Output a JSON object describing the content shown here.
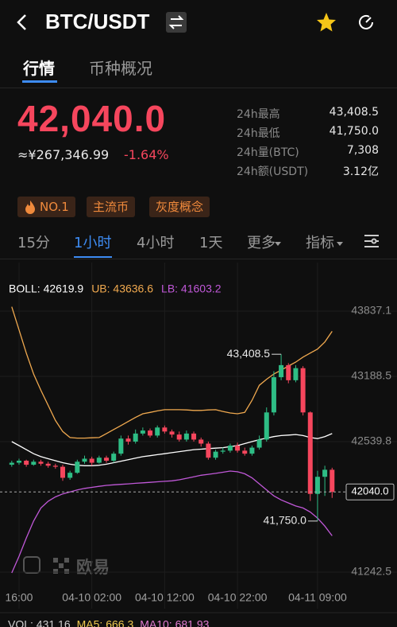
{
  "header": {
    "title": "BTC/USDT"
  },
  "tabs": [
    "行情",
    "币种概况"
  ],
  "price": {
    "last": "42,040.0",
    "cny": "≈¥267,346.99",
    "change": "-1.64%"
  },
  "stats": [
    [
      "24h最高",
      "43,408.5"
    ],
    [
      "24h最低",
      "41,750.0"
    ],
    [
      "24h量(BTC)",
      "7,308"
    ],
    [
      "24h额(USDT)",
      "3.12亿"
    ]
  ],
  "tags": [
    "NO.1",
    "主流币",
    "灰度概念"
  ],
  "intervals": [
    "15分",
    "1小时",
    "4小时",
    "1天",
    "更多",
    "指标"
  ],
  "watermark": "欧易",
  "chart_data": {
    "type": "candlestick",
    "categories": [
      null,
      "16:00",
      null,
      null,
      null,
      null,
      null,
      null,
      null,
      null,
      null,
      "04-10 02:00",
      null,
      null,
      null,
      null,
      null,
      null,
      null,
      null,
      null,
      "04-10 12:00",
      null,
      null,
      null,
      null,
      null,
      null,
      null,
      null,
      null,
      "04-10 22:00",
      null,
      null,
      null,
      null,
      null,
      null,
      null,
      null,
      null,
      null,
      "04-11 09:00",
      null,
      null
    ],
    "open": [
      42310,
      42330,
      42350,
      42310,
      42340,
      42320,
      42300,
      42290,
      42180,
      42230,
      42340,
      42370,
      42330,
      42380,
      42350,
      42420,
      42570,
      42540,
      42620,
      42650,
      42600,
      42680,
      42640,
      42610,
      42560,
      42620,
      42560,
      42520,
      42380,
      42440,
      42450,
      42500,
      42450,
      42420,
      42480,
      42560,
      42830,
      43180,
      43300,
      43150,
      43270,
      42830,
      42020,
      42190,
      42260
    ],
    "high": [
      42350,
      42370,
      42360,
      42360,
      42360,
      42340,
      42320,
      42310,
      42250,
      42360,
      42400,
      42390,
      42400,
      42400,
      42440,
      42600,
      42600,
      42660,
      42680,
      42670,
      42700,
      42700,
      42660,
      42640,
      42650,
      42640,
      42580,
      42540,
      42460,
      42480,
      42520,
      42530,
      42480,
      42500,
      42600,
      42880,
      43240,
      43408.5,
      43320,
      43300,
      43290,
      42840,
      42250,
      42300,
      42280
    ],
    "low": [
      42290,
      42310,
      42290,
      42300,
      42300,
      42280,
      42270,
      42150,
      42160,
      42220,
      42320,
      42300,
      42320,
      42330,
      42330,
      42400,
      42510,
      42520,
      42600,
      42580,
      42580,
      42620,
      42580,
      42540,
      42540,
      42540,
      42490,
      42360,
      42360,
      42420,
      42430,
      42430,
      42400,
      42400,
      42460,
      42540,
      42800,
      43150,
      43120,
      43130,
      42800,
      41950,
      41750,
      42000,
      41980
    ],
    "close": [
      42330,
      42350,
      42310,
      42340,
      42320,
      42300,
      42290,
      42180,
      42230,
      42340,
      42370,
      42330,
      42380,
      42350,
      42420,
      42570,
      42540,
      42620,
      42650,
      42600,
      42680,
      42640,
      42610,
      42560,
      42620,
      42560,
      42520,
      42380,
      42440,
      42450,
      42500,
      42450,
      42420,
      42480,
      42560,
      42830,
      43180,
      43300,
      43150,
      43270,
      42830,
      42020,
      42190,
      42260,
      42040
    ],
    "up_color": "#2ebd85",
    "down_color": "#f6465d",
    "series": [
      {
        "name": "BOLL: 42619.9",
        "color": "#ffffff",
        "values": [
          42540,
          42500,
          42460,
          42420,
          42390,
          42370,
          42350,
          42330,
          42315,
          42305,
          42300,
          42300,
          42305,
          42315,
          42330,
          42345,
          42360,
          42375,
          42390,
          42400,
          42410,
          42420,
          42430,
          42440,
          42450,
          42460,
          42465,
          42470,
          42475,
          42480,
          42490,
          42500,
          42520,
          42540,
          42560,
          42575,
          42590,
          42600,
          42605,
          42610,
          42600,
          42580,
          42570,
          42590,
          42619.9
        ]
      },
      {
        "name": "UB: 43636.6",
        "color": "#f0a94f",
        "values": [
          43880,
          43650,
          43420,
          43212,
          43050,
          42900,
          42750,
          42640,
          42580,
          42575,
          42575,
          42578,
          42580,
          42620,
          42660,
          42700,
          42740,
          42780,
          42817,
          42830,
          42845,
          42857,
          42857,
          42857,
          42855,
          42850,
          42850,
          42855,
          42857,
          42840,
          42825,
          42817,
          42830,
          42950,
          43100,
          43160,
          43212,
          43250,
          43291,
          43330,
          43380,
          43420,
          43460,
          43530,
          43636.6
        ]
      },
      {
        "name": "LB: 41603.2",
        "color": "#c058d8",
        "values": [
          41235,
          41400,
          41580,
          41750,
          41880,
          41947,
          41990,
          42020,
          42040,
          42060,
          42075,
          42085,
          42095,
          42105,
          42110,
          42115,
          42120,
          42125,
          42130,
          42135,
          42140,
          42145,
          42150,
          42160,
          42175,
          42190,
          42205,
          42215,
          42224,
          42235,
          42247,
          42240,
          42220,
          42180,
          42120,
          42060,
          42000,
          41960,
          41930,
          41900,
          41880,
          41840,
          41780,
          41700,
          41603.2
        ]
      }
    ],
    "ylim": [
      41116,
      44201
    ],
    "yticks": [
      43837.1,
      43188.5,
      42539.8,
      41242.5
    ],
    "grid": true,
    "last_price": 42040,
    "last_price_label": "42040.0",
    "high_label": "43,408.5",
    "low_label": "41,750.0",
    "sub_indicators": [
      {
        "text": "VOL: 431.16",
        "color": "#cfcfcf"
      },
      {
        "text": "MA5: 666.3",
        "color": "#f0c94f"
      },
      {
        "text": "MA10: 681.93",
        "color": "#e07bd0"
      }
    ]
  }
}
